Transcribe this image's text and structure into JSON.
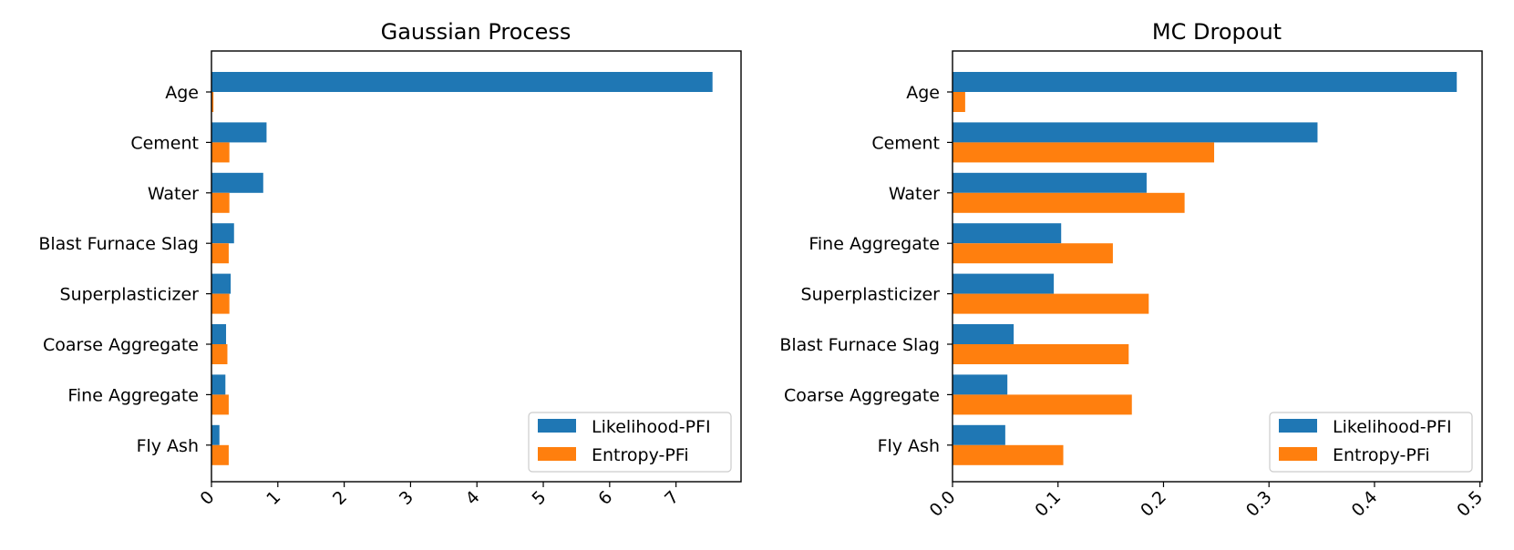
{
  "colors": {
    "likelihood": "#1f77b4",
    "entropy": "#ff7f0e"
  },
  "chart_data": [
    {
      "type": "bar",
      "orientation": "horizontal",
      "title": "Gaussian Process",
      "categories": [
        "Age",
        "Cement",
        "Water",
        "Blast Furnace Slag",
        "Superplasticizer",
        "Coarse Aggregate",
        "Fine Aggregate",
        "Fly Ash"
      ],
      "series": [
        {
          "name": "Likelihood-PFI",
          "values": [
            7.55,
            0.83,
            0.78,
            0.34,
            0.29,
            0.22,
            0.21,
            0.12
          ]
        },
        {
          "name": "Entropy-PFi",
          "values": [
            0.03,
            0.27,
            0.27,
            0.26,
            0.27,
            0.24,
            0.26,
            0.26
          ]
        }
      ],
      "xlim": [
        0,
        7.98
      ],
      "xticks": [
        0,
        1,
        2,
        3,
        4,
        5,
        6,
        7
      ],
      "xtick_labels": [
        "0",
        "1",
        "2",
        "3",
        "4",
        "5",
        "6",
        "7"
      ],
      "legend_position": "lower-right"
    },
    {
      "type": "bar",
      "orientation": "horizontal",
      "title": "MC Dropout",
      "categories": [
        "Age",
        "Cement",
        "Water",
        "Fine Aggregate",
        "Superplasticizer",
        "Blast Furnace Slag",
        "Coarse Aggregate",
        "Fly Ash"
      ],
      "series": [
        {
          "name": "Likelihood-PFI",
          "values": [
            0.478,
            0.346,
            0.184,
            0.103,
            0.096,
            0.058,
            0.052,
            0.05
          ]
        },
        {
          "name": "Entropy-PFi",
          "values": [
            0.012,
            0.248,
            0.22,
            0.152,
            0.186,
            0.167,
            0.17,
            0.105
          ]
        }
      ],
      "xlim": [
        0,
        0.502
      ],
      "xticks": [
        0,
        0.1,
        0.2,
        0.3,
        0.4,
        0.5
      ],
      "xtick_labels": [
        "0.0",
        "0.1",
        "0.2",
        "0.3",
        "0.4",
        "0.5"
      ],
      "legend_position": "lower-right"
    }
  ]
}
